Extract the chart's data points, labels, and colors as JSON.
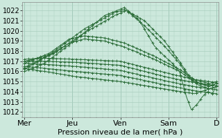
{
  "title": "Pression niveau de la mer( hPa )",
  "bg_color": "#cce8dc",
  "grid_color": "#aacfbf",
  "line_color": "#2d6e3a",
  "ylim": [
    1011.5,
    1022.8
  ],
  "yticks": [
    1012,
    1013,
    1014,
    1015,
    1016,
    1017,
    1018,
    1019,
    1020,
    1021,
    1022
  ],
  "day_labels": [
    "Mer",
    "Jeu",
    "Ven",
    "Sam",
    "D"
  ],
  "day_positions": [
    0,
    48,
    96,
    144,
    192
  ],
  "xlabel_fontsize": 8,
  "ylabel_fontsize": 7
}
